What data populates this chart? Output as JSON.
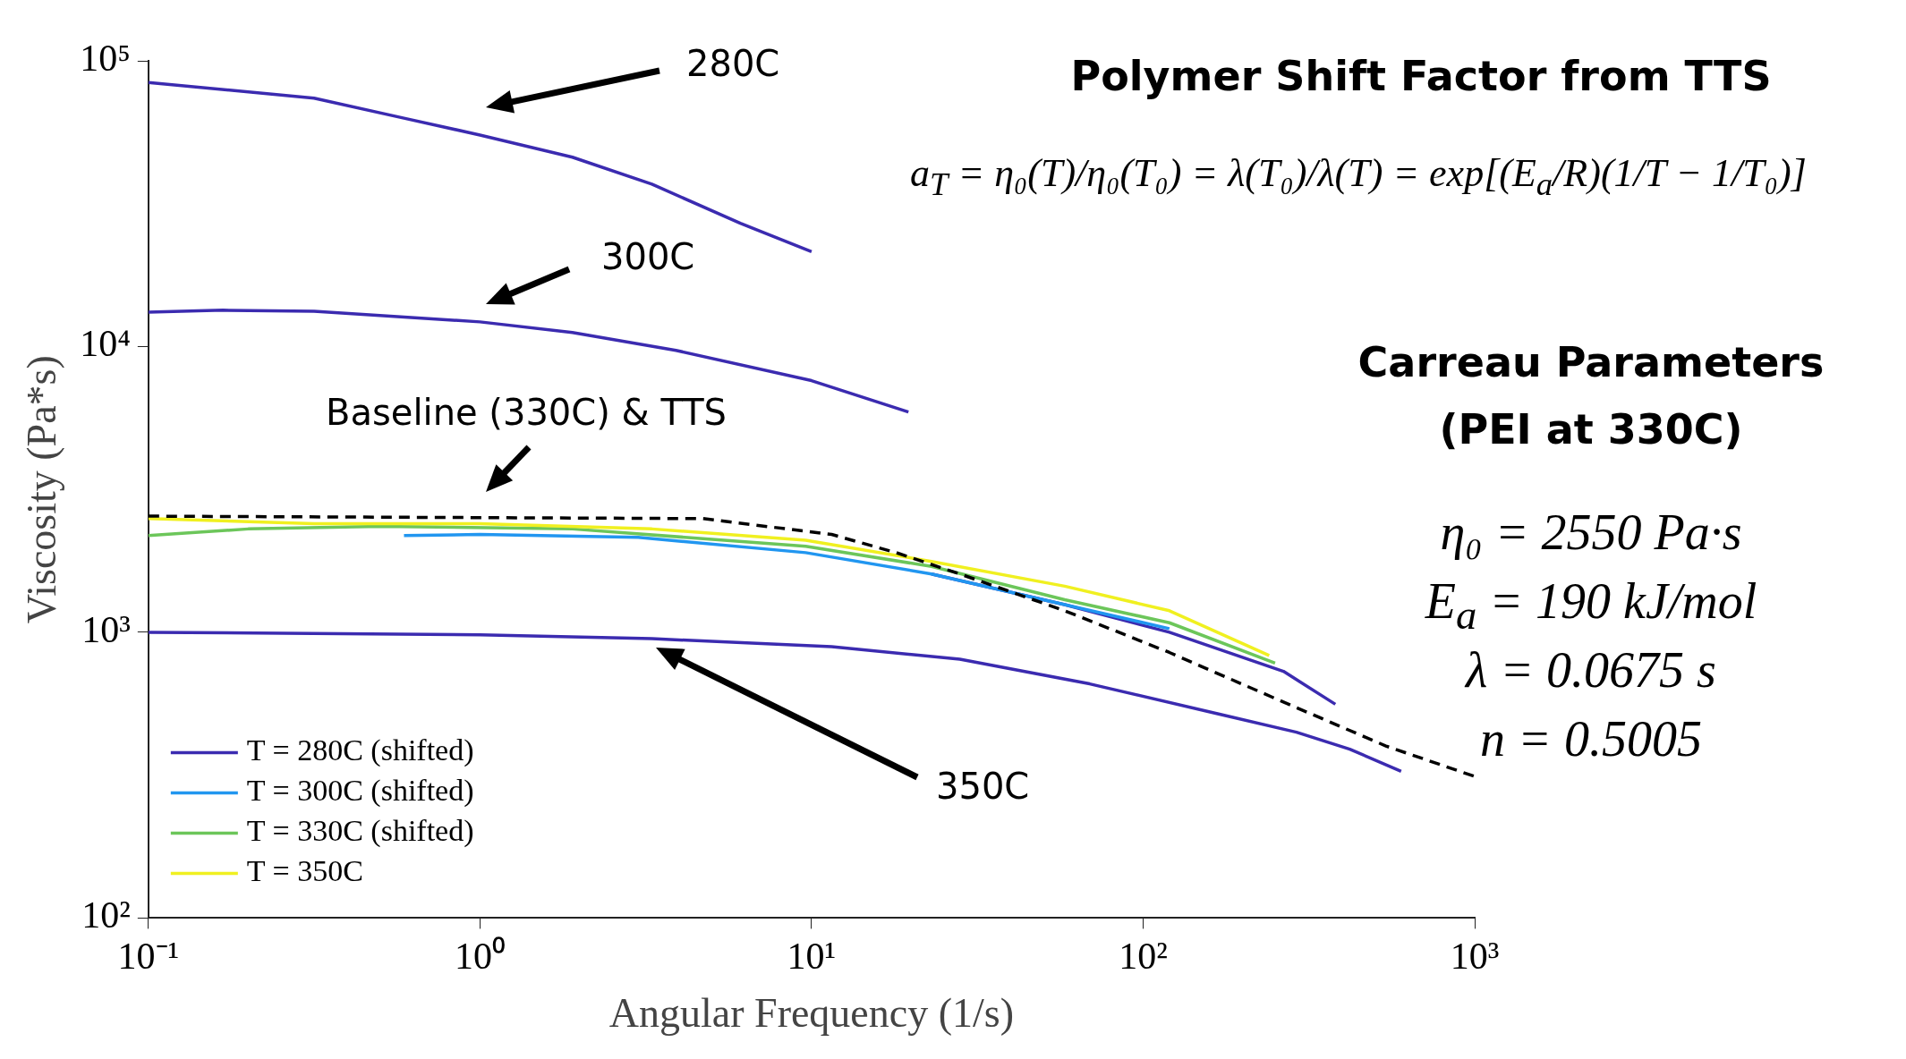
{
  "chart_data": {
    "type": "line",
    "title": "Polymer Shift Factor from TTS",
    "xlabel": "Angular Frequency (1/s)",
    "ylabel": "Viscosity (Pa*s)",
    "log": "xy",
    "grid": false,
    "legend": "bottom left",
    "xlim": [
      0.1,
      1000
    ],
    "ylim": [
      100,
      100000
    ],
    "xticks": [
      {
        "value": 0.1,
        "label": "10⁻¹"
      },
      {
        "value": 1,
        "label": "10⁰"
      },
      {
        "value": 10,
        "label": "10¹"
      },
      {
        "value": 100,
        "label": "10²"
      },
      {
        "value": 1000,
        "label": "10³"
      }
    ],
    "yticks": [
      {
        "value": 100,
        "label": "10²"
      },
      {
        "value": 1000,
        "label": "10³"
      },
      {
        "value": 10000,
        "label": "10⁴"
      },
      {
        "value": 100000,
        "label": "10⁵"
      }
    ],
    "series": [
      {
        "color": "#3b2bb0",
        "x": [
          0.1,
          0.316,
          0.59,
          1.0,
          1.9,
          3.3,
          6.1,
          10
        ],
        "values": [
          84000,
          74000,
          63000,
          55000,
          46000,
          37000,
          27000,
          21500
        ]
      },
      {
        "color": "#3b2bb0",
        "x": [
          0.1,
          0.168,
          0.316,
          1.0,
          1.9,
          3.9,
          10,
          19.6
        ],
        "values": [
          13200,
          13400,
          13300,
          12200,
          11200,
          9700,
          7600,
          5900
        ]
      },
      {
        "color": "#3b2bb0",
        "x": [
          0.1,
          1.0,
          3.3,
          11.5,
          28,
          69,
          170,
          290,
          420,
          600
        ],
        "values": [
          1000,
          980,
          950,
          890,
          805,
          660,
          517,
          447,
          390,
          326
        ]
      },
      {
        "name": "T = 280C (shifted)",
        "color": "#3b2bb0",
        "x": [
          23,
          58,
          120,
          265,
          380
        ],
        "values": [
          1600,
          1250,
          1000,
          730,
          560
        ]
      },
      {
        "name": "T = 300C (shifted)",
        "color": "#2196f0",
        "x": [
          0.59,
          1.0,
          3.0,
          9.6,
          23,
          58,
          120
        ],
        "values": [
          2180,
          2200,
          2150,
          1900,
          1600,
          1250,
          1030
        ]
      },
      {
        "name": "T = 330C (shifted)",
        "color": "#6cc65a",
        "x": [
          0.1,
          0.2,
          0.5,
          1.9,
          9.6,
          23,
          58,
          120,
          250
        ],
        "values": [
          2180,
          2300,
          2350,
          2300,
          2000,
          1700,
          1300,
          1080,
          780
        ]
      },
      {
        "name": "T = 350C",
        "color": "#f0f020",
        "x": [
          0.1,
          0.316,
          1.0,
          3.3,
          9.6,
          23,
          58,
          120,
          240
        ],
        "values": [
          2500,
          2400,
          2400,
          2300,
          2100,
          1770,
          1450,
          1190,
          830
        ]
      },
      {
        "color": "#000000",
        "line_style": "dashed",
        "x": [
          0.1,
          4.7,
          11.5,
          18,
          28,
          58,
          120,
          265,
          540,
          1000
        ],
        "values": [
          2550,
          2500,
          2200,
          1900,
          1600,
          1190,
          850,
          570,
          400,
          313
        ]
      }
    ],
    "annotations": [
      "280C",
      "300C",
      "Baseline (330C) & TTS",
      "350C",
      "a$_{T}$ = η₀(T)/η₀(T₀) = λ(T₀)/λ(T) = exp[(E$_{a}$/R)(1/T − 1/T₀)]",
      "Carreau Parameters",
      "(PEI at 330C)",
      "η₀ = 2550 Pa·s",
      "E$_{a}$ = 190 kJ/mol",
      "λ = 0.0675 s",
      "n = 0.5005"
    ]
  }
}
